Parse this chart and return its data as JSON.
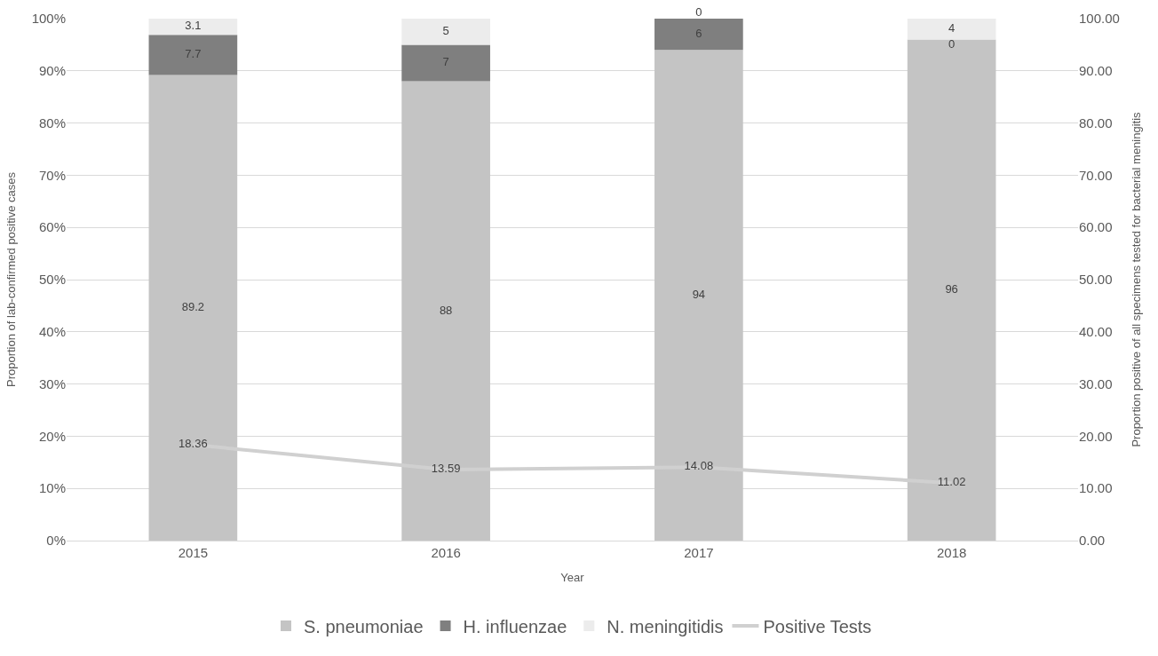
{
  "chart_data": {
    "type": "bar",
    "stacked": true,
    "categories": [
      "2015",
      "2016",
      "2017",
      "2018"
    ],
    "xlabel": "Year",
    "ylabel": "Proportion of lab-confirmed positive cases",
    "y2label": "Proportion positive of all specimens tested for bacterial meningitis",
    "series": [
      {
        "name": "S. pneumoniae",
        "color": "#c4c4c4",
        "values": [
          89.2,
          88,
          94,
          96
        ]
      },
      {
        "name": "H. influenzae",
        "color": "#7f7f7f",
        "values": [
          7.7,
          7,
          6,
          0
        ]
      },
      {
        "name": "N. meningitidis",
        "color": "#ececec",
        "values": [
          3.1,
          5,
          0,
          4
        ]
      },
      {
        "name": "Positive Tests",
        "type": "line",
        "axis": "y2",
        "color": "#d0d0d0",
        "marker": "none",
        "values": [
          18.36,
          13.59,
          14.08,
          11.02
        ]
      }
    ],
    "ylim": [
      0,
      100
    ],
    "yticks": [
      {
        "value": 0,
        "label": "0%"
      },
      {
        "value": 10,
        "label": "10%"
      },
      {
        "value": 20,
        "label": "20%"
      },
      {
        "value": 30,
        "label": "30%"
      },
      {
        "value": 40,
        "label": "40%"
      },
      {
        "value": 50,
        "label": "50%"
      },
      {
        "value": 60,
        "label": "60%"
      },
      {
        "value": 70,
        "label": "70%"
      },
      {
        "value": 80,
        "label": "80%"
      },
      {
        "value": 90,
        "label": "90%"
      },
      {
        "value": 100,
        "label": "100%"
      }
    ],
    "y2lim": [
      0,
      100
    ],
    "y2ticks": [
      {
        "value": 0,
        "label": "0.00"
      },
      {
        "value": 10,
        "label": "10.00"
      },
      {
        "value": 20,
        "label": "20.00"
      },
      {
        "value": 30,
        "label": "30.00"
      },
      {
        "value": 40,
        "label": "40.00"
      },
      {
        "value": 50,
        "label": "50.00"
      },
      {
        "value": 60,
        "label": "60.00"
      },
      {
        "value": 70,
        "label": "70.00"
      },
      {
        "value": 80,
        "label": "80.00"
      },
      {
        "value": 90,
        "label": "90.00"
      },
      {
        "value": 100,
        "label": "100.00"
      }
    ],
    "grid": "y",
    "legend": "bottom",
    "data_labels": true
  }
}
